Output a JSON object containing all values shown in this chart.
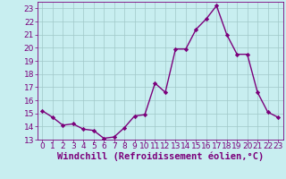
{
  "x": [
    0,
    1,
    2,
    3,
    4,
    5,
    6,
    7,
    8,
    9,
    10,
    11,
    12,
    13,
    14,
    15,
    16,
    17,
    18,
    19,
    20,
    21,
    22,
    23
  ],
  "y": [
    15.2,
    14.7,
    14.1,
    14.2,
    13.8,
    13.7,
    13.1,
    13.2,
    13.9,
    14.8,
    14.9,
    17.3,
    16.6,
    19.9,
    19.9,
    21.4,
    22.2,
    23.2,
    21.0,
    19.5,
    19.5,
    16.6,
    15.1,
    14.7
  ],
  "line_color": "#7B007B",
  "marker": "D",
  "marker_size": 2.2,
  "bg_color": "#c8eef0",
  "grid_color": "#a0c8c8",
  "xlabel": "Windchill (Refroidissement éolien,°C)",
  "xlabel_color": "#7B007B",
  "tick_color": "#7B007B",
  "ylim": [
    13,
    23.5
  ],
  "xlim": [
    -0.5,
    23.5
  ],
  "yticks": [
    13,
    14,
    15,
    16,
    17,
    18,
    19,
    20,
    21,
    22,
    23
  ],
  "xticks": [
    0,
    1,
    2,
    3,
    4,
    5,
    6,
    7,
    8,
    9,
    10,
    11,
    12,
    13,
    14,
    15,
    16,
    17,
    18,
    19,
    20,
    21,
    22,
    23
  ],
  "line_width": 1.0,
  "tick_fontsize": 6.5,
  "xlabel_fontsize": 7.5
}
